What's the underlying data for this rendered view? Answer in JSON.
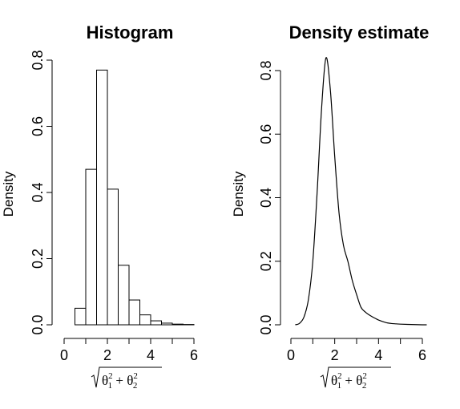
{
  "chart_data": [
    {
      "type": "bar",
      "title": "Histogram",
      "ylabel": "Density",
      "xlabel": "sqrt(θ1^2 + θ2^2)",
      "xlabel_parts": {
        "base1": "θ",
        "base2": "θ",
        "sup": "2",
        "sub1": "1",
        "sub2": "2",
        "plus": "+"
      },
      "xlim": [
        0,
        6
      ],
      "ylim": [
        0,
        0.8
      ],
      "x_ticks": [
        "0",
        "2",
        "4",
        "6"
      ],
      "y_ticks": [
        "0.0",
        "0.2",
        "0.4",
        "0.6",
        "0.8"
      ],
      "bin_edges": [
        0.5,
        1.0,
        1.5,
        2.0,
        2.5,
        3.0,
        3.5,
        4.0,
        4.5,
        5.0,
        5.5,
        6.0
      ],
      "values": [
        0.05,
        0.47,
        0.77,
        0.41,
        0.18,
        0.075,
        0.03,
        0.012,
        0.005,
        0.002,
        0.001
      ]
    },
    {
      "type": "line",
      "title": "Density estimate",
      "ylabel": "Density",
      "xlabel": "sqrt(θ1^2 + θ2^2)",
      "xlabel_parts": {
        "base1": "θ",
        "base2": "θ",
        "sup": "2",
        "sub1": "1",
        "sub2": "2",
        "plus": "+"
      },
      "xlim": [
        0,
        6
      ],
      "ylim": [
        0,
        0.85
      ],
      "x_ticks": [
        "0",
        "2",
        "4",
        "6"
      ],
      "y_ticks": [
        "0.0",
        "0.2",
        "0.4",
        "0.6",
        "0.8"
      ],
      "x": [
        0.2,
        0.4,
        0.6,
        0.8,
        1.0,
        1.2,
        1.4,
        1.6,
        1.8,
        2.0,
        2.2,
        2.4,
        2.6,
        2.8,
        3.0,
        3.2,
        3.4,
        3.6,
        3.8,
        4.0,
        4.2,
        4.4,
        4.6,
        4.8,
        5.0,
        5.5,
        6.0,
        6.2
      ],
      "y": [
        0.0,
        0.005,
        0.025,
        0.08,
        0.2,
        0.42,
        0.68,
        0.84,
        0.74,
        0.53,
        0.35,
        0.25,
        0.2,
        0.14,
        0.095,
        0.055,
        0.04,
        0.03,
        0.022,
        0.015,
        0.01,
        0.006,
        0.004,
        0.003,
        0.002,
        0.001,
        0.0,
        0.0
      ]
    }
  ]
}
